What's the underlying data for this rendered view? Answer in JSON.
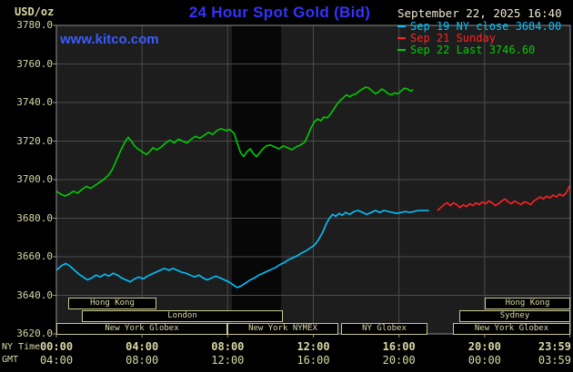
{
  "header": {
    "unit_label": "USD/oz",
    "title": "24 Hour Spot Gold (Bid)",
    "datetime": "September 22, 2025 16:40"
  },
  "watermark": "www.kitco.com",
  "legend": [
    {
      "label": "Sep 19 NY close 3684.00",
      "color": "#00c4ff"
    },
    {
      "label": "Sep 21 Sunday",
      "color": "#ff2222"
    },
    {
      "label": "Sep 22 Last 3746.60",
      "color": "#00cc00"
    }
  ],
  "axes": {
    "ny_label": "NY Time",
    "gmt_label": "GMT",
    "y_ticks": [
      "3780.0",
      "3760.0",
      "3740.0",
      "3720.0",
      "3700.0",
      "3680.0",
      "3660.0",
      "3640.0",
      "3620.0"
    ],
    "x_ticks": [
      {
        "hour": 0,
        "ny": "00:00",
        "gmt": "04:00"
      },
      {
        "hour": 4,
        "ny": "04:00",
        "gmt": "08:00"
      },
      {
        "hour": 8,
        "ny": "08:00",
        "gmt": "12:00"
      },
      {
        "hour": 12,
        "ny": "12:00",
        "gmt": "16:00"
      },
      {
        "hour": 16,
        "ny": "16:00",
        "gmt": "20:00"
      },
      {
        "hour": 20,
        "ny": "20:00",
        "gmt": "00:00"
      },
      {
        "hour": 23.983,
        "ny": "23:59",
        "gmt": "03:59"
      }
    ]
  },
  "sessions": [
    {
      "row": 0,
      "start": 0.55,
      "end": 4.65,
      "label": "Hong Kong"
    },
    {
      "row": 0,
      "start": 20.0,
      "end": 23.98,
      "label": "Hong Kong"
    },
    {
      "row": 1,
      "start": 1.2,
      "end": 10.6,
      "label": "London"
    },
    {
      "row": 1,
      "start": 18.8,
      "end": 23.98,
      "label": "Sydney"
    },
    {
      "row": 2,
      "start": 0.0,
      "end": 8.0,
      "label": "New York Globex"
    },
    {
      "row": 2,
      "start": 8.0,
      "end": 13.2,
      "label": "New York NYMEX"
    },
    {
      "row": 2,
      "start": 13.3,
      "end": 17.35,
      "label": "NY Globex"
    },
    {
      "row": 2,
      "start": 18.5,
      "end": 23.98,
      "label": "New York Globex"
    }
  ],
  "colors": {
    "title_blue": "#3333ff",
    "watermark_blue": "#3b5bff",
    "tan": "#d9d9a8",
    "datetime": "#efe9d2",
    "grid": "#4b4b4b",
    "frame": "#8f8f8f",
    "plot_bg": "#1d1d1d",
    "band_bg": "#070707",
    "session_border": "#c9c98f"
  },
  "chart_data": {
    "type": "line",
    "title": "24 Hour Spot Gold (Bid)",
    "unit": "USD/oz",
    "timezone_rows": [
      "NY Time",
      "GMT"
    ],
    "xlim": [
      0,
      24
    ],
    "ylim": [
      3620,
      3780
    ],
    "y_tick_step": 20,
    "shaded_region": {
      "start": 8.2,
      "end": 10.5
    },
    "prev_close": 3684.0,
    "last": 3746.6,
    "series": [
      {
        "name": "Sep 19 NY close",
        "color": "#00c4ff",
        "points": [
          [
            0,
            3653
          ],
          [
            0.25,
            3655.5
          ],
          [
            0.45,
            3656.5
          ],
          [
            0.65,
            3655
          ],
          [
            0.85,
            3653
          ],
          [
            1.05,
            3651
          ],
          [
            1.25,
            3649.5
          ],
          [
            1.45,
            3648
          ],
          [
            1.65,
            3649
          ],
          [
            1.85,
            3650.5
          ],
          [
            2.05,
            3649.5
          ],
          [
            2.25,
            3651
          ],
          [
            2.45,
            3650
          ],
          [
            2.65,
            3651.5
          ],
          [
            2.85,
            3650.5
          ],
          [
            3.05,
            3649
          ],
          [
            3.25,
            3648
          ],
          [
            3.45,
            3647
          ],
          [
            3.65,
            3648.5
          ],
          [
            3.85,
            3649.5
          ],
          [
            4.05,
            3648.5
          ],
          [
            4.25,
            3650
          ],
          [
            4.45,
            3651
          ],
          [
            4.65,
            3652
          ],
          [
            4.85,
            3653
          ],
          [
            5.05,
            3654
          ],
          [
            5.25,
            3653
          ],
          [
            5.45,
            3654
          ],
          [
            5.65,
            3653
          ],
          [
            5.85,
            3652
          ],
          [
            6.05,
            3651.5
          ],
          [
            6.25,
            3650.5
          ],
          [
            6.45,
            3649.5
          ],
          [
            6.65,
            3650.5
          ],
          [
            6.85,
            3649
          ],
          [
            7.05,
            3648
          ],
          [
            7.25,
            3649
          ],
          [
            7.45,
            3650
          ],
          [
            7.65,
            3649
          ],
          [
            7.85,
            3648
          ],
          [
            8.05,
            3647
          ],
          [
            8.25,
            3645.5
          ],
          [
            8.45,
            3644
          ],
          [
            8.65,
            3645
          ],
          [
            8.85,
            3646.5
          ],
          [
            9.05,
            3648
          ],
          [
            9.25,
            3649
          ],
          [
            9.45,
            3650.5
          ],
          [
            9.65,
            3651.5
          ],
          [
            9.85,
            3652.5
          ],
          [
            10.05,
            3653.5
          ],
          [
            10.25,
            3654.5
          ],
          [
            10.45,
            3656
          ],
          [
            10.65,
            3657
          ],
          [
            10.85,
            3658.5
          ],
          [
            11.05,
            3659.5
          ],
          [
            11.25,
            3660.5
          ],
          [
            11.45,
            3662
          ],
          [
            11.65,
            3663
          ],
          [
            11.85,
            3664.5
          ],
          [
            12.05,
            3666
          ],
          [
            12.25,
            3669
          ],
          [
            12.45,
            3673
          ],
          [
            12.6,
            3677
          ],
          [
            12.75,
            3680
          ],
          [
            12.9,
            3682
          ],
          [
            13.05,
            3681
          ],
          [
            13.2,
            3682.5
          ],
          [
            13.35,
            3681.5
          ],
          [
            13.5,
            3683
          ],
          [
            13.7,
            3682
          ],
          [
            13.9,
            3683.5
          ],
          [
            14.1,
            3684
          ],
          [
            14.3,
            3683
          ],
          [
            14.5,
            3682
          ],
          [
            14.7,
            3683
          ],
          [
            14.9,
            3684
          ],
          [
            15.1,
            3683
          ],
          [
            15.3,
            3684
          ],
          [
            15.5,
            3683.5
          ],
          [
            15.7,
            3683
          ],
          [
            15.9,
            3682.5
          ],
          [
            16.1,
            3683
          ],
          [
            16.3,
            3683.5
          ],
          [
            16.5,
            3683
          ],
          [
            16.7,
            3683.5
          ],
          [
            16.9,
            3684
          ],
          [
            17.1,
            3684
          ],
          [
            17.4,
            3684
          ]
        ]
      },
      {
        "name": "Sep 21 Sunday",
        "color": "#ff2222",
        "points": [
          [
            17.8,
            3684
          ],
          [
            17.95,
            3685.5
          ],
          [
            18.1,
            3687
          ],
          [
            18.25,
            3688
          ],
          [
            18.4,
            3686.5
          ],
          [
            18.55,
            3688
          ],
          [
            18.7,
            3687
          ],
          [
            18.85,
            3685.5
          ],
          [
            19,
            3687
          ],
          [
            19.15,
            3686
          ],
          [
            19.3,
            3687.5
          ],
          [
            19.45,
            3686.5
          ],
          [
            19.6,
            3688
          ],
          [
            19.75,
            3687
          ],
          [
            19.9,
            3688.5
          ],
          [
            20.05,
            3687.5
          ],
          [
            20.2,
            3689
          ],
          [
            20.35,
            3688
          ],
          [
            20.5,
            3686.5
          ],
          [
            20.65,
            3687.5
          ],
          [
            20.8,
            3689
          ],
          [
            20.95,
            3690
          ],
          [
            21.1,
            3688.5
          ],
          [
            21.25,
            3687.5
          ],
          [
            21.4,
            3689
          ],
          [
            21.55,
            3688
          ],
          [
            21.7,
            3687
          ],
          [
            21.85,
            3688.5
          ],
          [
            22,
            3688
          ],
          [
            22.15,
            3687
          ],
          [
            22.3,
            3689
          ],
          [
            22.45,
            3690
          ],
          [
            22.6,
            3691
          ],
          [
            22.75,
            3690
          ],
          [
            22.9,
            3691.5
          ],
          [
            23.05,
            3690.5
          ],
          [
            23.2,
            3692
          ],
          [
            23.35,
            3691
          ],
          [
            23.5,
            3692.5
          ],
          [
            23.65,
            3691.5
          ],
          [
            23.8,
            3693
          ],
          [
            23.9,
            3695
          ],
          [
            23.98,
            3697
          ]
        ]
      },
      {
        "name": "Sep 22",
        "color": "#00cc00",
        "points": [
          [
            0,
            3694
          ],
          [
            0.2,
            3692.5
          ],
          [
            0.4,
            3691.5
          ],
          [
            0.6,
            3692.5
          ],
          [
            0.8,
            3694
          ],
          [
            1,
            3693
          ],
          [
            1.2,
            3695
          ],
          [
            1.4,
            3696.5
          ],
          [
            1.6,
            3695.5
          ],
          [
            1.8,
            3697
          ],
          [
            2,
            3698.5
          ],
          [
            2.2,
            3700
          ],
          [
            2.4,
            3702
          ],
          [
            2.6,
            3705
          ],
          [
            2.8,
            3710
          ],
          [
            3,
            3715
          ],
          [
            3.2,
            3719.5
          ],
          [
            3.35,
            3722
          ],
          [
            3.5,
            3720
          ],
          [
            3.65,
            3717.5
          ],
          [
            3.8,
            3716
          ],
          [
            4,
            3714.5
          ],
          [
            4.2,
            3713
          ],
          [
            4.35,
            3714.5
          ],
          [
            4.5,
            3716.5
          ],
          [
            4.7,
            3715.5
          ],
          [
            4.9,
            3717
          ],
          [
            5.1,
            3719
          ],
          [
            5.3,
            3720.5
          ],
          [
            5.5,
            3719
          ],
          [
            5.7,
            3721
          ],
          [
            5.9,
            3720
          ],
          [
            6.1,
            3719
          ],
          [
            6.3,
            3721
          ],
          [
            6.5,
            3722.5
          ],
          [
            6.7,
            3721.5
          ],
          [
            6.9,
            3723
          ],
          [
            7.1,
            3724.5
          ],
          [
            7.3,
            3723.5
          ],
          [
            7.5,
            3725.5
          ],
          [
            7.7,
            3726.5
          ],
          [
            7.9,
            3725.5
          ],
          [
            8.1,
            3726
          ],
          [
            8.3,
            3724
          ],
          [
            8.45,
            3719
          ],
          [
            8.6,
            3714
          ],
          [
            8.75,
            3712
          ],
          [
            8.9,
            3714.5
          ],
          [
            9.05,
            3716
          ],
          [
            9.2,
            3713.5
          ],
          [
            9.35,
            3712
          ],
          [
            9.5,
            3714
          ],
          [
            9.65,
            3716
          ],
          [
            9.8,
            3717.5
          ],
          [
            10,
            3718
          ],
          [
            10.2,
            3717
          ],
          [
            10.4,
            3716
          ],
          [
            10.6,
            3717.5
          ],
          [
            10.8,
            3716.5
          ],
          [
            11,
            3715.5
          ],
          [
            11.2,
            3717
          ],
          [
            11.4,
            3718
          ],
          [
            11.6,
            3719.5
          ],
          [
            11.75,
            3723
          ],
          [
            11.9,
            3727
          ],
          [
            12.05,
            3730
          ],
          [
            12.2,
            3731.5
          ],
          [
            12.35,
            3730.5
          ],
          [
            12.5,
            3732.5
          ],
          [
            12.65,
            3732
          ],
          [
            12.8,
            3734
          ],
          [
            12.95,
            3736.5
          ],
          [
            13.1,
            3739
          ],
          [
            13.25,
            3741
          ],
          [
            13.4,
            3742.5
          ],
          [
            13.55,
            3744
          ],
          [
            13.7,
            3743
          ],
          [
            13.85,
            3744
          ],
          [
            14,
            3744.5
          ],
          [
            14.15,
            3746
          ],
          [
            14.3,
            3747
          ],
          [
            14.45,
            3748
          ],
          [
            14.6,
            3747.5
          ],
          [
            14.75,
            3746
          ],
          [
            14.9,
            3744.5
          ],
          [
            15.05,
            3745.5
          ],
          [
            15.2,
            3747
          ],
          [
            15.35,
            3746
          ],
          [
            15.5,
            3744.5
          ],
          [
            15.65,
            3744
          ],
          [
            15.8,
            3745
          ],
          [
            15.95,
            3744.5
          ],
          [
            16.1,
            3746
          ],
          [
            16.25,
            3747.5
          ],
          [
            16.4,
            3747
          ],
          [
            16.55,
            3746
          ],
          [
            16.67,
            3746.6
          ]
        ]
      }
    ]
  }
}
